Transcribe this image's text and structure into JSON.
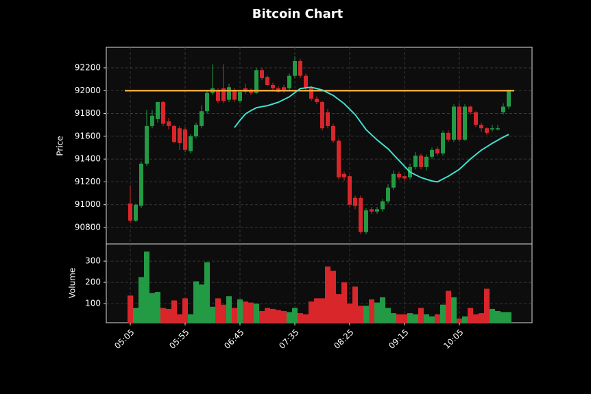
{
  "chart_data": {
    "type": "candlestick",
    "title": "Bitcoin Chart",
    "y_label": "Price",
    "y2_label": "Volume",
    "categories": [
      "05:05",
      null,
      null,
      null,
      null,
      null,
      null,
      null,
      null,
      null,
      "05:55",
      null,
      null,
      null,
      null,
      null,
      null,
      null,
      null,
      null,
      "06:45",
      null,
      null,
      null,
      null,
      null,
      null,
      null,
      null,
      null,
      "07:35",
      null,
      null,
      null,
      null,
      null,
      null,
      null,
      null,
      null,
      "08:25",
      null,
      null,
      null,
      null,
      null,
      null,
      null,
      null,
      null,
      "09:15",
      null,
      null,
      null,
      null,
      null,
      null,
      null,
      null,
      null,
      "10:05",
      null,
      null,
      null,
      null,
      null,
      null,
      null,
      null,
      null
    ],
    "open": [
      91010,
      90860,
      90990,
      91360,
      91690,
      91750,
      91900,
      91730,
      91690,
      91670,
      91660,
      91470,
      91600,
      91690,
      91820,
      91980,
      92000,
      92020,
      91920,
      92000,
      91910,
      92020,
      92000,
      91980,
      92180,
      92120,
      92050,
      92020,
      92030,
      92020,
      92130,
      92260,
      92130,
      92020,
      91930,
      91900,
      91810,
      91690,
      91560,
      91270,
      91250,
      91060,
      91060,
      90760,
      90960,
      90940,
      90960,
      91030,
      91150,
      91270,
      91250,
      91240,
      91330,
      91430,
      91330,
      91420,
      91490,
      91450,
      91630,
      91570,
      91860,
      91570,
      91860,
      91810,
      91700,
      91670,
      91660,
      91660,
      91810,
      91860
    ],
    "high": [
      91170,
      91010,
      91380,
      91830,
      91830,
      91900,
      91910,
      91760,
      91700,
      91690,
      91680,
      91620,
      91720,
      91870,
      92000,
      92230,
      92020,
      92230,
      92060,
      92020,
      92000,
      92060,
      92020,
      92200,
      92200,
      92130,
      92070,
      92040,
      92050,
      92150,
      92300,
      92280,
      92150,
      92040,
      91950,
      91910,
      91840,
      91710,
      91580,
      91290,
      91260,
      91080,
      91080,
      90970,
      90980,
      90980,
      91050,
      91180,
      91300,
      91290,
      91260,
      91360,
      91460,
      91450,
      91440,
      91500,
      91510,
      91650,
      91650,
      91880,
      91890,
      91880,
      91870,
      91820,
      91720,
      91680,
      91700,
      91700,
      91890,
      92010
    ],
    "low": [
      90840,
      90850,
      90970,
      91340,
      91670,
      91720,
      91690,
      91660,
      91540,
      91480,
      91460,
      91450,
      91580,
      91670,
      91800,
      91960,
      91890,
      91890,
      91900,
      91900,
      91890,
      91970,
      91960,
      91970,
      92090,
      92040,
      92000,
      91980,
      91980,
      92000,
      92110,
      92110,
      92000,
      91910,
      91880,
      91650,
      91670,
      91540,
      91220,
      91210,
      90980,
      90960,
      90740,
      90740,
      90920,
      90920,
      90940,
      91010,
      91130,
      91220,
      91210,
      91220,
      91310,
      91310,
      91300,
      91400,
      91430,
      91430,
      91550,
      91550,
      91550,
      91560,
      91790,
      91680,
      91640,
      91610,
      91640,
      91650,
      91790,
      91840
    ],
    "close": [
      90860,
      91000,
      91360,
      91690,
      91780,
      91900,
      91710,
      91690,
      91550,
      91540,
      91480,
      91600,
      91700,
      91820,
      91980,
      92020,
      91910,
      91910,
      92030,
      91920,
      91990,
      91990,
      91980,
      92180,
      92110,
      92050,
      92020,
      91990,
      92000,
      92130,
      92260,
      92130,
      92020,
      91930,
      91900,
      91670,
      91690,
      91560,
      91240,
      91240,
      91000,
      90990,
      90760,
      90950,
      90940,
      90960,
      91030,
      91150,
      91270,
      91240,
      91230,
      91330,
      91430,
      91330,
      91420,
      91480,
      91450,
      91630,
      91570,
      91860,
      91570,
      91860,
      91810,
      91700,
      91670,
      91630,
      91670,
      91670,
      91860,
      92000
    ],
    "volume": [
      138,
      80,
      225,
      345,
      150,
      155,
      80,
      75,
      115,
      50,
      125,
      50,
      205,
      190,
      295,
      85,
      125,
      95,
      135,
      80,
      120,
      110,
      105,
      100,
      65,
      80,
      75,
      70,
      65,
      60,
      80,
      55,
      50,
      110,
      125,
      125,
      275,
      255,
      145,
      200,
      100,
      180,
      90,
      90,
      120,
      105,
      130,
      80,
      55,
      50,
      50,
      55,
      50,
      80,
      50,
      40,
      50,
      95,
      160,
      130,
      30,
      40,
      80,
      50,
      55,
      170,
      75,
      65,
      60,
      60
    ],
    "moving_average": [
      null,
      null,
      null,
      null,
      null,
      null,
      null,
      null,
      null,
      null,
      null,
      null,
      null,
      null,
      null,
      null,
      null,
      null,
      null,
      91676,
      91740,
      91796,
      91825,
      91850,
      91860,
      91868,
      91883,
      91898,
      91922,
      91946,
      91982,
      92018,
      92024,
      92030,
      92018,
      92006,
      91982,
      91958,
      91922,
      91886,
      91838,
      91790,
      91724,
      91658,
      91613,
      91568,
      91529,
      91490,
      91439,
      91388,
      91337,
      91286,
      91262,
      91238,
      91223,
      91208,
      91200,
      91225,
      91250,
      91280,
      91310,
      91355,
      91400,
      91439,
      91478,
      91508,
      91538,
      91565,
      91592,
      91616
    ],
    "ma_color": "#40e0d0",
    "up_color": "#239b45",
    "down_color": "#d9262b",
    "hline": 92000,
    "hline_color": "#f5a63a",
    "ylim": [
      90656,
      92380
    ],
    "yticks": [
      90800,
      91000,
      91200,
      91400,
      91600,
      91800,
      92000,
      92200
    ],
    "y2lim": [
      10,
      381
    ],
    "y2ticks": [
      100,
      200,
      300
    ],
    "grid": true
  }
}
